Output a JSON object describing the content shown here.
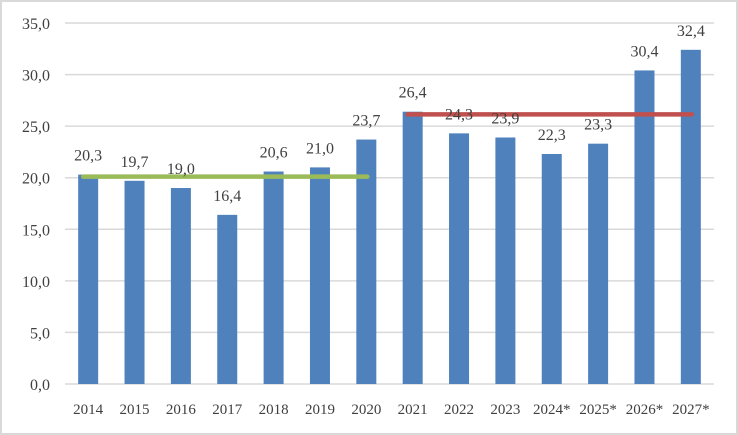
{
  "chart_data": {
    "type": "bar",
    "title": "",
    "xlabel": "",
    "ylabel": "",
    "categories": [
      "2014",
      "2015",
      "2016",
      "2017",
      "2018",
      "2019",
      "2020",
      "2021",
      "2022",
      "2023",
      "2024*",
      "2025*",
      "2026*",
      "2027*"
    ],
    "values": [
      20.3,
      19.7,
      19.0,
      16.4,
      20.6,
      21.0,
      23.7,
      26.4,
      24.3,
      23.9,
      22.3,
      23.3,
      30.4,
      32.4
    ],
    "data_labels": [
      "20,3",
      "19,7",
      "19,0",
      "16,4",
      "20,6",
      "21,0",
      "23,7",
      "26,4",
      "24,3",
      "23,9",
      "22,3",
      "23,3",
      "30,4",
      "32,4"
    ],
    "ylim": [
      0,
      35
    ],
    "yticks": [
      0,
      5,
      10,
      15,
      20,
      25,
      30,
      35
    ],
    "ytick_labels": [
      "0,0",
      "5,0",
      "10,0",
      "15,0",
      "20,0",
      "25,0",
      "30,0",
      "35,0"
    ],
    "grid": true,
    "averages": [
      {
        "name": "average-2014-2020",
        "from": 0,
        "to": 6,
        "value": 20.1,
        "color": "#9BBB59"
      },
      {
        "name": "average-2021-2027",
        "from": 7,
        "to": 13,
        "value": 26.14,
        "color": "#C0504D"
      }
    ],
    "colors": {
      "bar": "#4F81BD",
      "grid": "#D9D9D9",
      "border": "#D9D9D9"
    }
  }
}
